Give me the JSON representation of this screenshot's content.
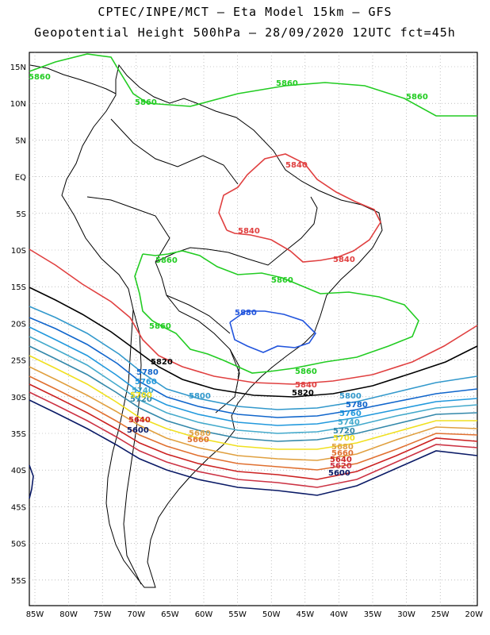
{
  "header": {
    "title_line1": "CPTEC/INPE/MCT – Eta Model 15km – GFS",
    "title_line2": "Geopotential Height 500hPa – 28/09/2020 12UTC fct=45h"
  },
  "map": {
    "lat_labels": [
      "15N",
      "10N",
      "5N",
      "EQ",
      "5S",
      "10S",
      "15S",
      "20S",
      "25S",
      "30S",
      "35S",
      "40S",
      "45S",
      "50S",
      "55S"
    ],
    "lon_labels": [
      "85W",
      "80W",
      "75W",
      "70W",
      "65W",
      "60W",
      "55W",
      "50W",
      "45W",
      "40W",
      "35W",
      "30W",
      "25W",
      "20W"
    ],
    "contour_colors": {
      "5860": "#22cc22",
      "5840": "#e04040",
      "5880": "#2255dd",
      "5820": "#000000",
      "5800": "#3399cc",
      "5780": "#1166cc",
      "5760": "#2299dd",
      "5740": "#44aacc",
      "5720": "#3388aa",
      "5700": "#f0e020",
      "5680": "#e0a040",
      "5660": "#e07030",
      "5640": "#cc2222",
      "5620": "#cc3344",
      "5600": "#0a1a66"
    },
    "contour_labels": [
      {
        "text": "5860",
        "color": "#22cc22"
      },
      {
        "text": "5860",
        "color": "#22cc22"
      },
      {
        "text": "5860",
        "color": "#22cc22"
      },
      {
        "text": "5860",
        "color": "#22cc22"
      },
      {
        "text": "5860",
        "color": "#22cc22"
      },
      {
        "text": "5860",
        "color": "#22cc22"
      },
      {
        "text": "5860",
        "color": "#22cc22"
      },
      {
        "text": "5860",
        "color": "#22cc22"
      },
      {
        "text": "5840",
        "color": "#e04040"
      },
      {
        "text": "5840",
        "color": "#e04040"
      },
      {
        "text": "5840",
        "color": "#e04040"
      },
      {
        "text": "5840",
        "color": "#e04040"
      },
      {
        "text": "5880",
        "color": "#2255dd"
      },
      {
        "text": "5820",
        "color": "#000000"
      },
      {
        "text": "5820",
        "color": "#000000"
      },
      {
        "text": "5780",
        "color": "#1166cc"
      },
      {
        "text": "5760",
        "color": "#2299dd"
      },
      {
        "text": "5740",
        "color": "#44aacc"
      },
      {
        "text": "5720",
        "color": "#3388aa"
      },
      {
        "text": "5700",
        "color": "#f0e020"
      },
      {
        "text": "5800",
        "color": "#3399cc"
      },
      {
        "text": "5800",
        "color": "#3399cc"
      },
      {
        "text": "5780",
        "color": "#1166cc"
      },
      {
        "text": "5760",
        "color": "#2299dd"
      },
      {
        "text": "5740",
        "color": "#44aacc"
      },
      {
        "text": "5720",
        "color": "#3388aa"
      },
      {
        "text": "5700",
        "color": "#f0e020"
      },
      {
        "text": "5680",
        "color": "#e0a040"
      },
      {
        "text": "5660",
        "color": "#e07030"
      },
      {
        "text": "5640",
        "color": "#cc2222"
      },
      {
        "text": "5620",
        "color": "#cc3344"
      },
      {
        "text": "5600",
        "color": "#0a1a66"
      },
      {
        "text": "5640",
        "color": "#cc2222"
      },
      {
        "text": "5600",
        "color": "#0a1a66"
      },
      {
        "text": "5680",
        "color": "#e0a040"
      },
      {
        "text": "5660",
        "color": "#e07030"
      }
    ]
  }
}
